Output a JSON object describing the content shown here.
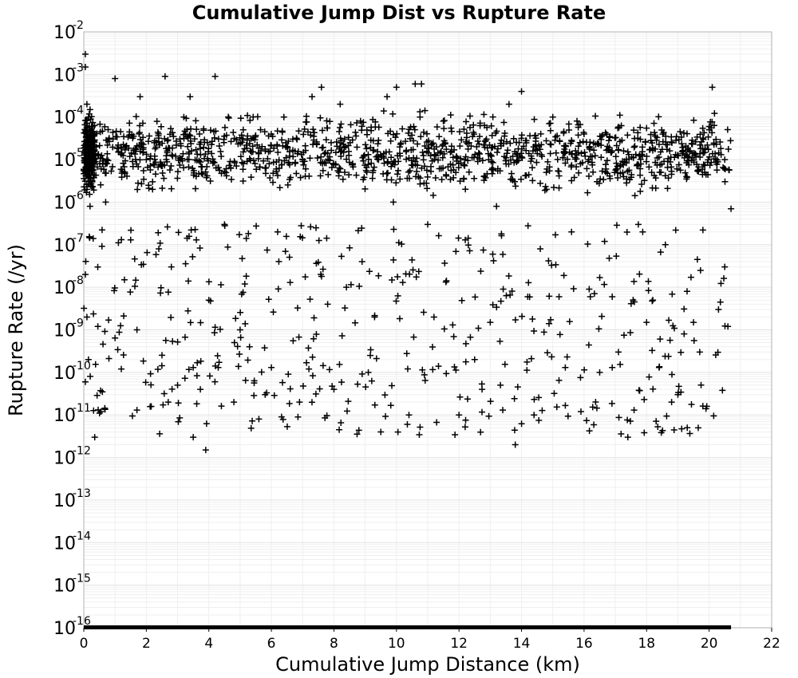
{
  "chart_data": {
    "type": "scatter",
    "title": "Cumulative Jump Dist vs Rupture Rate",
    "xlabel": "Cumulative Jump Distance (km)",
    "ylabel": "Rupture Rate (/yr)",
    "xlim": [
      0,
      22
    ],
    "ylim": [
      1e-16,
      0.01
    ],
    "yscale": "log",
    "grid": true,
    "legend": "none",
    "marker": "plus",
    "marker_color": "#000000",
    "xticks": [
      "0",
      "2",
      "4",
      "6",
      "8",
      "10",
      "12",
      "14",
      "16",
      "18",
      "20",
      "22"
    ],
    "yticks": [
      {
        "base": "10",
        "exp": "-2"
      },
      {
        "base": "10",
        "exp": "-3"
      },
      {
        "base": "10",
        "exp": "-4"
      },
      {
        "base": "10",
        "exp": "-5"
      },
      {
        "base": "10",
        "exp": "-6"
      },
      {
        "base": "10",
        "exp": "-7"
      },
      {
        "base": "10",
        "exp": "-8"
      },
      {
        "base": "10",
        "exp": "-9"
      },
      {
        "base": "10",
        "exp": "-10"
      },
      {
        "base": "10",
        "exp": "-11"
      },
      {
        "base": "10",
        "exp": "-12"
      },
      {
        "base": "10",
        "exp": "-13"
      },
      {
        "base": "10",
        "exp": "-14"
      },
      {
        "base": "10",
        "exp": "-15"
      },
      {
        "base": "10",
        "exp": "-16"
      }
    ],
    "points": [
      [
        0.05,
        0.003
      ],
      [
        0.05,
        0.0015
      ],
      [
        0.1,
        0.0002
      ],
      [
        0.15,
        0.0001
      ],
      [
        0.2,
        2e-05
      ],
      [
        0.25,
        6e-05
      ],
      [
        0.3,
        1e-05
      ],
      [
        0.05,
        5e-06
      ],
      [
        0.1,
        2e-06
      ],
      [
        0.2,
        8e-07
      ],
      [
        0.05,
        2e-08
      ],
      [
        0.1,
        2e-09
      ],
      [
        0.15,
        2e-10
      ],
      [
        0.05,
        6e-11
      ],
      [
        0.3,
        1.4e-07
      ],
      [
        0.45,
        1.2e-09
      ],
      [
        0.55,
        1.2e-11
      ],
      [
        0.35,
        3e-12
      ],
      [
        0.7,
        1e-06
      ],
      [
        0.8,
        3e-05
      ],
      [
        1.0,
        0.0008
      ],
      [
        1.2,
        1.2e-10
      ],
      [
        1.3,
        1.5e-08
      ],
      [
        1.5,
        1.3e-07
      ],
      [
        1.7,
        1e-09
      ],
      [
        1.7,
        1.3e-11
      ],
      [
        1.8,
        0.0003
      ],
      [
        2.0,
        1e-05
      ],
      [
        2.2,
        2e-06
      ],
      [
        2.4,
        8e-08
      ],
      [
        2.6,
        0.0009
      ],
      [
        2.7,
        2e-11
      ],
      [
        2.8,
        3e-08
      ],
      [
        3.0,
        5e-11
      ],
      [
        3.2,
        0.0001
      ],
      [
        3.4,
        0.0003
      ],
      [
        3.5,
        1.3e-10
      ],
      [
        3.5,
        3e-12
      ],
      [
        3.6,
        1.3e-07
      ],
      [
        3.7,
        4e-05
      ],
      [
        3.9,
        1.5e-12
      ],
      [
        4.0,
        5e-09
      ],
      [
        4.2,
        0.0009
      ],
      [
        4.3,
        1.3e-10
      ],
      [
        4.5,
        3e-07
      ],
      [
        4.8,
        2e-11
      ],
      [
        5.0,
        1e-09
      ],
      [
        5.1,
        5e-05
      ],
      [
        5.3,
        4e-10
      ],
      [
        5.6,
        8e-12
      ],
      [
        5.8,
        3e-11
      ],
      [
        6.0,
        1.3e-10
      ],
      [
        6.2,
        2e-07
      ],
      [
        6.4,
        0.0001
      ],
      [
        6.6,
        1.3e-08
      ],
      [
        6.9,
        2e-11
      ],
      [
        7.0,
        1e-05
      ],
      [
        7.2,
        1.2e-10
      ],
      [
        7.3,
        0.0003
      ],
      [
        7.6,
        0.0005
      ],
      [
        7.8,
        4e-09
      ],
      [
        8.0,
        4e-11
      ],
      [
        8.2,
        0.0002
      ],
      [
        8.4,
        1e-08
      ],
      [
        8.6,
        8e-06
      ],
      [
        8.9,
        4e-08
      ],
      [
        9.1,
        1e-10
      ],
      [
        9.3,
        2e-09
      ],
      [
        9.5,
        4e-12
      ],
      [
        9.7,
        0.0003
      ],
      [
        9.9,
        1e-06
      ],
      [
        10.0,
        0.0005
      ],
      [
        10.2,
        1.3e-08
      ],
      [
        10.4,
        1e-11
      ],
      [
        10.6,
        0.0006
      ],
      [
        10.8,
        0.0006
      ],
      [
        11.0,
        3e-07
      ],
      [
        11.2,
        2e-09
      ],
      [
        11.5,
        8e-05
      ],
      [
        11.8,
        1.3e-09
      ],
      [
        12.0,
        1e-11
      ],
      [
        12.2,
        1.3e-07
      ],
      [
        12.5,
        2e-10
      ],
      [
        12.8,
        4e-06
      ],
      [
        13.0,
        1.5e-09
      ],
      [
        13.2,
        8e-07
      ],
      [
        13.4,
        1.3e-11
      ],
      [
        13.6,
        0.0002
      ],
      [
        13.8,
        2e-12
      ],
      [
        14.0,
        0.0004
      ],
      [
        14.2,
        6e-09
      ],
      [
        14.4,
        1e-11
      ],
      [
        14.6,
        8e-08
      ],
      [
        14.8,
        2e-06
      ],
      [
        15.0,
        0.0001
      ],
      [
        15.2,
        6e-09
      ],
      [
        15.4,
        1.3e-10
      ],
      [
        15.6,
        2e-07
      ],
      [
        15.9,
        1.2e-11
      ],
      [
        16.0,
        4e-05
      ],
      [
        16.2,
        6e-09
      ],
      [
        16.5,
        1e-10
      ],
      [
        16.7,
        6e-06
      ],
      [
        16.9,
        1.3e-10
      ],
      [
        17.1,
        3e-10
      ],
      [
        17.4,
        3e-12
      ],
      [
        17.6,
        1.3e-11
      ],
      [
        17.8,
        3e-05
      ],
      [
        18.0,
        1.5e-09
      ],
      [
        18.2,
        5e-09
      ],
      [
        18.4,
        1.3e-10
      ],
      [
        18.6,
        1e-07
      ],
      [
        18.8,
        2e-11
      ],
      [
        19.0,
        3e-11
      ],
      [
        19.2,
        8e-10
      ],
      [
        19.3,
        5e-12
      ],
      [
        19.5,
        1.5e-09
      ],
      [
        19.7,
        3e-10
      ],
      [
        19.9,
        1.4e-11
      ],
      [
        20.0,
        6e-05
      ],
      [
        20.1,
        0.0005
      ],
      [
        20.3,
        3e-09
      ],
      [
        20.5,
        3e-08
      ],
      [
        20.6,
        1.2e-09
      ],
      [
        20.7,
        7e-07
      ],
      [
        20.5,
        1e-05
      ],
      [
        0.2,
        0.00015
      ],
      [
        0.3,
        8e-06
      ],
      [
        0.15,
        4e-06
      ],
      [
        0.4,
        2e-05
      ]
    ],
    "dense_band": {
      "x_range": [
        0,
        20.7
      ],
      "y_range": [
        1e-06,
        0.0002
      ],
      "count": 1500
    },
    "floor_points": {
      "x_range": [
        0,
        20.7
      ],
      "y": 1e-16
    }
  }
}
